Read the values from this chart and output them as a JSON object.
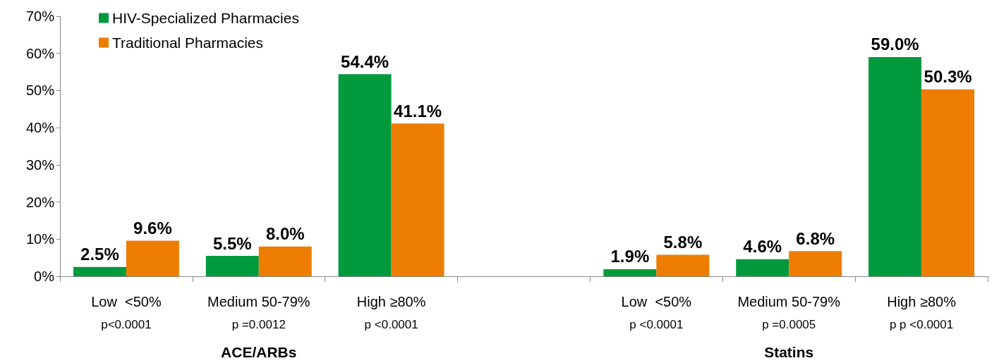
{
  "chart_data": {
    "type": "bar",
    "categories": [
      "Low  <50%\np<0.0001",
      "Medium 50-79%\np =0.0012",
      "High ≥80%\np <0.0001",
      null,
      "Low  <50%\np <0.0001",
      "Medium 50-79%\np =0.0005",
      "High ≥80%\np p <0.0001"
    ],
    "series": [
      {
        "name": "HIV-Specialized Pharmacies",
        "color": "#009a3d",
        "values": [
          2.5,
          5.5,
          54.4,
          null,
          1.9,
          4.6,
          59.0
        ],
        "value_labels": [
          "2.5%",
          "5.5%",
          "54.4%",
          null,
          "1.9%",
          "4.6%",
          "59.0%"
        ]
      },
      {
        "name": "Traditional Pharmacies",
        "color": "#ed7d00",
        "values": [
          9.6,
          8.0,
          41.1,
          null,
          5.8,
          6.8,
          50.3
        ],
        "value_labels": [
          "9.6%",
          "8.0%",
          "41.1%",
          null,
          "5.8%",
          "6.8%",
          "50.3%"
        ]
      }
    ],
    "ylim": [
      0,
      70
    ],
    "yticks": [
      {
        "value": 0,
        "label": "0%"
      },
      {
        "value": 10,
        "label": "10%"
      },
      {
        "value": 20,
        "label": "20%"
      },
      {
        "value": 30,
        "label": "30%"
      },
      {
        "value": 40,
        "label": "40%"
      },
      {
        "value": 50,
        "label": "50%"
      },
      {
        "value": 60,
        "label": "60%"
      },
      {
        "value": 70,
        "label": "70%"
      }
    ],
    "annotations": [
      "ACE/ARBs",
      "Statins"
    ],
    "legend": "top left",
    "grid": false
  }
}
